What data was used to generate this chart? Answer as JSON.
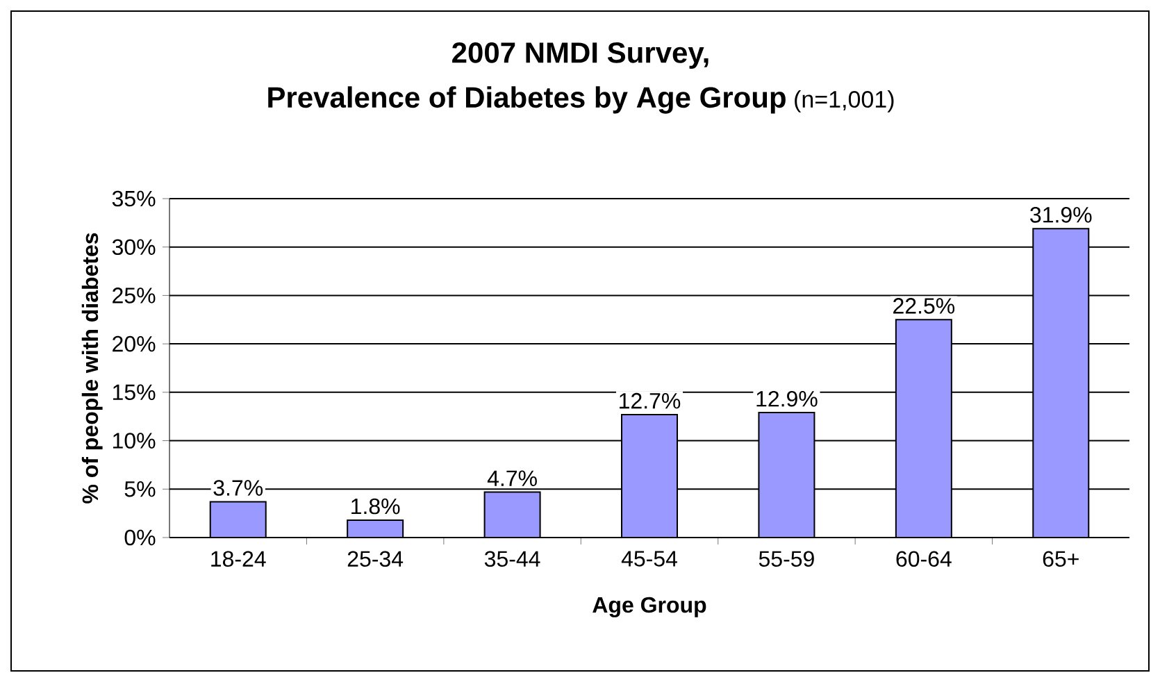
{
  "chart_data": {
    "type": "bar",
    "title": "2007 NMDI Survey,",
    "subtitle": "Prevalence of Diabetes by Age Group",
    "annotations": [
      "(n=1,001)"
    ],
    "xlabel": "Age Group",
    "ylabel": "% of people with diabetes",
    "categories": [
      "18-24",
      "25-34",
      "35-44",
      "45-54",
      "55-59",
      "60-64",
      "65+"
    ],
    "values": [
      3.7,
      1.8,
      4.7,
      12.7,
      12.9,
      22.5,
      31.9
    ],
    "value_labels": [
      "3.7%",
      "1.8%",
      "4.7%",
      "12.7%",
      "12.9%",
      "22.5%",
      "31.9%"
    ],
    "color": "#9999ff",
    "ylim": [
      0,
      35
    ],
    "yticks": [
      {
        "value": 0,
        "label": "0%"
      },
      {
        "value": 5,
        "label": "5%"
      },
      {
        "value": 10,
        "label": "10%"
      },
      {
        "value": 15,
        "label": "15%"
      },
      {
        "value": 20,
        "label": "20%"
      },
      {
        "value": 25,
        "label": "25%"
      },
      {
        "value": 30,
        "label": "30%"
      },
      {
        "value": 35,
        "label": "35%"
      }
    ],
    "grid": "y"
  }
}
